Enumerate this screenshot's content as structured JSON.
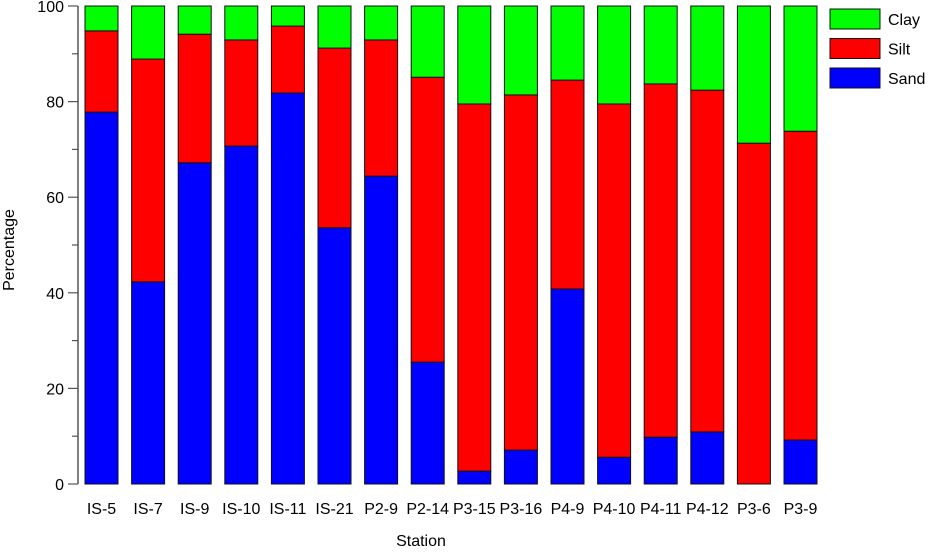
{
  "chart_data": {
    "type": "bar",
    "stacked": true,
    "title": "",
    "xlabel": "Station",
    "ylabel": "Percentage",
    "ylim": [
      0,
      100
    ],
    "yticks": [
      0,
      20,
      40,
      60,
      80,
      100
    ],
    "categories": [
      "IS-5",
      "IS-7",
      "IS-9",
      "IS-10",
      "IS-11",
      "IS-21",
      "P2-9",
      "P2-14",
      "P3-15",
      "P3-16",
      "P4-9",
      "P4-10",
      "P4-11",
      "P4-12",
      "P3-6",
      "P3-9"
    ],
    "series": [
      {
        "name": "Sand",
        "color": "#0000ff",
        "values": [
          77.8,
          42.3,
          67.2,
          70.7,
          81.8,
          53.6,
          64.4,
          25.5,
          2.7,
          7.1,
          40.8,
          5.6,
          9.8,
          10.9,
          0.0,
          9.2
        ]
      },
      {
        "name": "Silt",
        "color": "#ff0000",
        "values": [
          17.0,
          46.6,
          26.9,
          22.2,
          14.0,
          37.6,
          28.5,
          59.6,
          76.8,
          74.3,
          43.7,
          73.9,
          73.9,
          71.5,
          71.3,
          64.6
        ]
      },
      {
        "name": "Clay",
        "color": "#00ff00",
        "values": [
          5.2,
          11.1,
          5.9,
          7.1,
          4.2,
          8.8,
          7.1,
          14.9,
          20.5,
          18.6,
          15.5,
          20.5,
          16.3,
          17.6,
          28.7,
          26.2
        ]
      }
    ],
    "legend": {
      "placement": "top-right",
      "order": [
        "Clay",
        "Silt",
        "Sand"
      ]
    },
    "grid": false
  }
}
